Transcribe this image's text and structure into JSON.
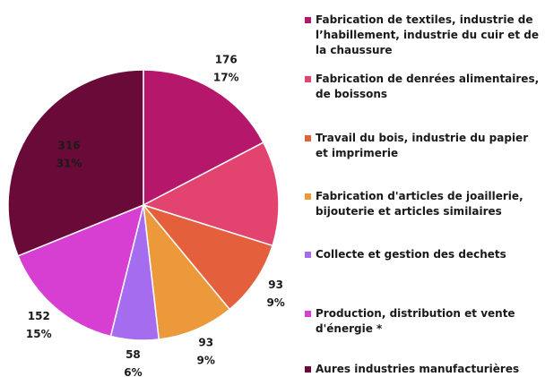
{
  "chart_data": {
    "type": "pie",
    "series": [
      {
        "name": "Fabrication de textiles, industrie de l’habillement, industrie du cuir et de la chaussure",
        "color": "#b5176b"
      },
      {
        "name": "Fabrication de denrées alimentaires, de boissons",
        "color": "#e2436f"
      },
      {
        "name": "Travail du bois, industrie du papier et imprimerie",
        "color": "#e4603c"
      },
      {
        "name": "Fabrication d'articles de joaillerie, bijouterie et articles similaires",
        "color": "#ec993b"
      },
      {
        "name": "Collecte et gestion des dechets",
        "color": "#a56cf0"
      },
      {
        "name": "Production, distribution et vente d'énergie *",
        "color": "#d63fd2"
      },
      {
        "name": "Aures industries manufacturières",
        "color": "#6a0a38"
      }
    ],
    "values": [
      176,
      127,
      93,
      93,
      58,
      152,
      316
    ],
    "percent_labels": [
      "17%",
      "13%",
      "9%",
      "9%",
      "6%",
      "15%",
      "31%"
    ]
  }
}
